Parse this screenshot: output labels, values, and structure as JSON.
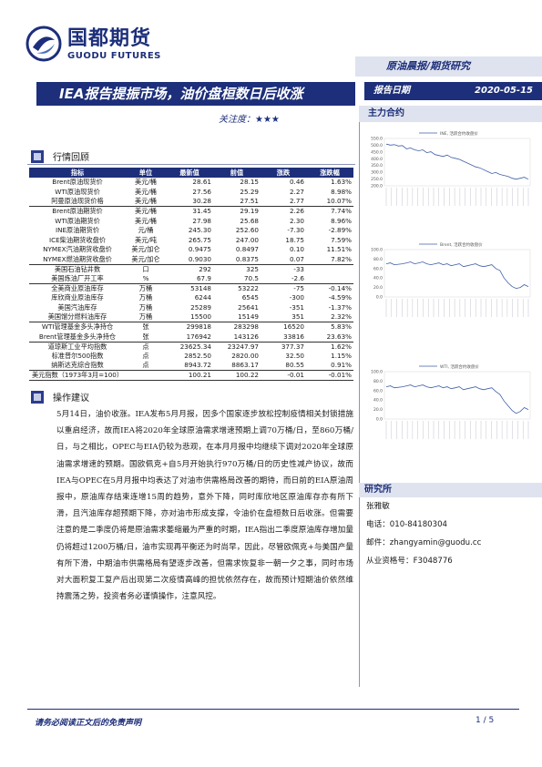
{
  "header": {
    "logo_cn": "国都期货",
    "logo_en": "GUODU FUTURES",
    "report_type": "原油晨报/期货研究",
    "headline": "IEA报告提振市场，油价盘桓数日后收涨",
    "date_label": "报告日期",
    "date_value": "2020-05-15",
    "attention_label": "关注度：",
    "attention_stars": "★★★"
  },
  "sections": {
    "market_review": "行情回顾",
    "operation": "操作建议",
    "main_contract": "主力合约",
    "research": "研究所"
  },
  "table": {
    "headers": [
      "指标",
      "单位",
      "最新值",
      "前值",
      "涨跌",
      "涨跌幅"
    ],
    "rows": [
      [
        "Brent原油现货价",
        "美元/桶",
        "28.61",
        "28.15",
        "0.46",
        "1.63%"
      ],
      [
        "WTI原油现货价",
        "美元/桶",
        "27.56",
        "25.29",
        "2.27",
        "8.98%"
      ],
      [
        "阿曼原油现货价格",
        "美元/桶",
        "30.28",
        "27.51",
        "2.77",
        "10.07%"
      ],
      [
        "Brent原油期货价",
        "美元/桶",
        "31.45",
        "29.19",
        "2.26",
        "7.74%"
      ],
      [
        "WTI原油期货价",
        "美元/桶",
        "27.98",
        "25.68",
        "2.30",
        "8.96%"
      ],
      [
        "INE原油期货价",
        "元/桶",
        "245.30",
        "252.60",
        "-7.30",
        "-2.89%"
      ],
      [
        "ICE柴油期货收盘价",
        "美元/吨",
        "265.75",
        "247.00",
        "18.75",
        "7.59%"
      ],
      [
        "NYMEX汽油期货收盘价",
        "美元/加仑",
        "0.9475",
        "0.8497",
        "0.10",
        "11.51%"
      ],
      [
        "NYMEX燃油期货收盘价",
        "美元/加仑",
        "0.9030",
        "0.8375",
        "0.07",
        "7.82%"
      ],
      [
        "美国石油钻井数",
        "口",
        "292",
        "325",
        "-33",
        ""
      ],
      [
        "美国炼油厂开工率",
        "%",
        "67.9",
        "70.5",
        "-2.6",
        ""
      ],
      [
        "全美商业原油库存",
        "万桶",
        "53148",
        "53222",
        "-75",
        "-0.14%"
      ],
      [
        "库欣商业原油库存",
        "万桶",
        "6244",
        "6545",
        "-300",
        "-4.59%"
      ],
      [
        "美国汽油库存",
        "万桶",
        "25289",
        "25641",
        "-351",
        "-1.37%"
      ],
      [
        "美国馏分燃料油库存",
        "万桶",
        "15500",
        "15149",
        "351",
        "2.32%"
      ],
      [
        "WTI管理基金多头净持仓",
        "张",
        "299818",
        "283298",
        "16520",
        "5.83%"
      ],
      [
        "Brent管理基金多头净持仓",
        "张",
        "176942",
        "143126",
        "33816",
        "23.63%"
      ],
      [
        "道琼斯工业平均指数",
        "点",
        "23625.34",
        "23247.97",
        "377.37",
        "1.62%"
      ],
      [
        "标准普尔500指数",
        "点",
        "2852.50",
        "2820.00",
        "32.50",
        "1.15%"
      ],
      [
        "纳斯达克综合指数",
        "点",
        "8943.72",
        "8863.17",
        "80.55",
        "0.91%"
      ],
      [
        "美元指数（1973年3月=100）",
        "",
        "100.21",
        "100.22",
        "-0.01",
        "-0.01%"
      ]
    ]
  },
  "body_text": "5月14日，油价收涨。IEA发布5月月报，因多个国家逐步放松控制疫情相关封锁措施以重启经济，故而IEA将2020年全球原油需求增速预期上调70万桶/日，至860万桶/日，与之相比，OPEC与EIA仍较为悲观，在本月月报中均继续下调对2020年全球原油需求增速的预期。国欧佩克+自5月开始执行970万桶/日的历史性减产协议，故而IEA与OPEC在5月月报中均表达了对油市供需格局改善的期待，而日前的EIA原油周报中，原油库存结束连增15周的趋势，意外下降，同时库欣地区原油库存亦有所下滑，且汽油库存超预期下降，亦对油市形成支撑，令油价在盘桓数日后收涨。但需要注意的是二季度仍将是原油需求萎缩最为严重的时期，IEA指出二季度原油库存增加量仍将超过1200万桶/日，油市实现再平衡还为时尚早，因此，尽管欧佩克+与美国产量有所下滑，中期油市供需格局有望逐步改善，但需求恢复非一朝一夕之事，同时市场对大面积复工复产后出现第二次疫情高峰的担忧依然存在，故而预计短期油价依然维持震荡之势，投资者务必谨慎操作，注意风控。",
  "charts": [
    {
      "legend": "INE, 活跃合约收盘价",
      "yticks": [
        "550.0",
        "500.0",
        "450.0",
        "400.0",
        "350.0",
        "300.0",
        "250.0",
        "200.0"
      ]
    },
    {
      "legend": "Brent, 活跃合约收盘价",
      "yticks": [
        "100.0",
        "80.0",
        "60.0",
        "40.0",
        "20.0",
        "0.0"
      ]
    },
    {
      "legend": "WTI, 活跃合约收盘价",
      "yticks": [
        "100.0",
        "80.0",
        "60.0",
        "40.0",
        "20.0",
        "0.0"
      ]
    }
  ],
  "analyst": {
    "name": "张雅敏",
    "phone": "电话：010-84180304",
    "email": "邮件：zhangyamin@guodu.cc",
    "license": "从业资格号：F3048776"
  },
  "footer": {
    "note": "请务必阅读正文后的免责声明",
    "page": "1 / 5"
  }
}
